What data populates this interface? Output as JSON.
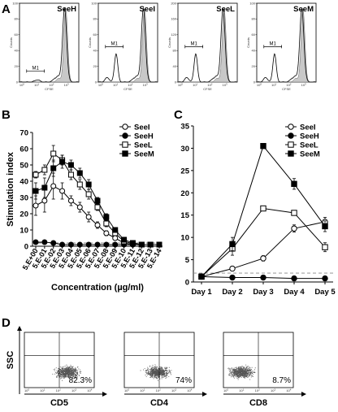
{
  "panels": {
    "A": "A",
    "B": "B",
    "C": "C",
    "D": "D"
  },
  "chart_data": [
    {
      "panel": "A",
      "type": "histogram",
      "subplots": [
        {
          "title": "SeeH",
          "ylabel": "Counts",
          "xlabel": "CFSE",
          "marker": "M1",
          "ymax": 100,
          "ylim": [
            0,
            100
          ],
          "yticks": [
            0,
            20,
            40,
            60,
            80,
            100
          ],
          "xticks": [
            "10^0",
            "10^1",
            "10^2",
            "10^3"
          ],
          "profile": "no-proliferation"
        },
        {
          "title": "SeeI",
          "ylabel": "Counts",
          "xlabel": "CFSE",
          "marker": "M1",
          "ymax": 100,
          "ylim": [
            0,
            100
          ],
          "yticks": [
            0,
            20,
            40,
            60,
            80,
            100
          ],
          "xticks": [
            "10^0",
            "10^1",
            "10^2",
            "10^3"
          ],
          "profile": "proliferation"
        },
        {
          "title": "SeeL",
          "ylabel": "Counts",
          "xlabel": "CFSE",
          "marker": "M1",
          "ymax": 200,
          "ylim": [
            0,
            200
          ],
          "yticks": [
            0,
            40,
            80,
            120,
            160,
            200
          ],
          "xticks": [
            "10^0",
            "10^1",
            "10^2",
            "10^3"
          ],
          "profile": "proliferation"
        },
        {
          "title": "SeeM",
          "ylabel": "Counts",
          "xlabel": "CFSE",
          "marker": "M1",
          "ymax": 100,
          "ylim": [
            0,
            100
          ],
          "yticks": [
            0,
            20,
            40,
            60,
            80,
            100
          ],
          "xticks": [
            "10^0",
            "10^1",
            "10^2",
            "10^3"
          ],
          "profile": "proliferation"
        }
      ]
    },
    {
      "panel": "B",
      "type": "line",
      "xlabel": "Concentration (µg/ml)",
      "ylabel": "Stimulation index",
      "ylim": [
        0,
        70
      ],
      "yticks": [
        0,
        10,
        20,
        30,
        40,
        50,
        60,
        70
      ],
      "categories": [
        "5.E+00",
        "5.E-01",
        "5.E-02",
        "5.E-03",
        "5.E-04",
        "5.E-05",
        "5.E-06",
        "5.E-07",
        "5.E-08",
        "5.E-09",
        "5.E-10",
        "5.E-11",
        "5.E-12",
        "5.E-13",
        "5.E-14"
      ],
      "threshold": 2,
      "legend_position": "top-right",
      "series": [
        {
          "name": "SeeI",
          "marker": "open-circle",
          "values": [
            25,
            28,
            37,
            34,
            28,
            24,
            18,
            13,
            8,
            5,
            2,
            1,
            1,
            1,
            1
          ],
          "errors": [
            6,
            7,
            8,
            5,
            3,
            3,
            3,
            2,
            1.5,
            1,
            0.5,
            0.3,
            0.3,
            0.3,
            0.3
          ]
        },
        {
          "name": "SeeH",
          "marker": "filled-circle",
          "values": [
            2.5,
            2.5,
            2,
            1,
            1,
            1,
            1,
            1,
            1,
            1,
            1,
            1,
            1,
            1,
            1
          ],
          "errors": [
            0.3,
            0.3,
            0.3,
            0.2,
            0.2,
            0.2,
            0.2,
            0.2,
            0.2,
            0.2,
            0.2,
            0.2,
            0.2,
            0.2,
            0.2
          ]
        },
        {
          "name": "SeeL",
          "marker": "open-square",
          "values": [
            44,
            47,
            57,
            53,
            44,
            38,
            32,
            24,
            14,
            8,
            3,
            1.5,
            1,
            1,
            1
          ],
          "errors": [
            2,
            3,
            5,
            3,
            3,
            3,
            3,
            2,
            2,
            1,
            0.5,
            0.3,
            0.3,
            0.3,
            0.3
          ]
        },
        {
          "name": "SeeM",
          "marker": "filled-square",
          "values": [
            34,
            36,
            48,
            52,
            50,
            45,
            38,
            28,
            18,
            10,
            4,
            2,
            1,
            1,
            1
          ],
          "errors": [
            5,
            6,
            5,
            4,
            3,
            3,
            3,
            2,
            2,
            1,
            0.5,
            0.3,
            0.3,
            0.3,
            0.3
          ]
        }
      ]
    },
    {
      "panel": "C",
      "type": "line",
      "xlabel": "",
      "ylabel": "",
      "ylim": [
        0,
        35
      ],
      "yticks": [
        0,
        5,
        10,
        15,
        20,
        25,
        30,
        35
      ],
      "categories": [
        "Day 1",
        "Day 2",
        "Day 3",
        "Day 4",
        "Day 5"
      ],
      "threshold": 2,
      "legend_position": "top-right",
      "series": [
        {
          "name": "SeeI",
          "marker": "open-circle",
          "values": [
            1.2,
            3,
            5.3,
            12,
            13.5
          ],
          "errors": [
            0.2,
            0.5,
            0.6,
            0.8,
            1.0
          ]
        },
        {
          "name": "SeeH",
          "marker": "filled-circle",
          "values": [
            1.2,
            1.0,
            1.0,
            0.8,
            0.8
          ],
          "errors": [
            0.1,
            0.1,
            0.1,
            0.1,
            0.1
          ]
        },
        {
          "name": "SeeL",
          "marker": "open-square",
          "values": [
            1.2,
            7.5,
            16.5,
            15.5,
            7.8
          ],
          "errors": [
            0.2,
            1.5,
            0.5,
            0.3,
            1.0
          ]
        },
        {
          "name": "SeeM",
          "marker": "filled-square",
          "values": [
            1.2,
            8.5,
            30.5,
            22,
            12.5
          ],
          "errors": [
            0.2,
            1.5,
            0.5,
            1.2,
            1.2
          ]
        }
      ]
    },
    {
      "panel": "D",
      "type": "scatter",
      "ylabel": "SSC",
      "subplots": [
        {
          "xlabel": "CD5",
          "percent": "82.3%",
          "xticks": [
            "10^0",
            "10^1",
            "10^2",
            "10^3",
            "10^4"
          ]
        },
        {
          "xlabel": "CD4",
          "percent": "74%",
          "xticks": [
            "10^0",
            "10^1",
            "10^2",
            "10^3",
            "10^4"
          ]
        },
        {
          "xlabel": "CD8",
          "percent": "8.7%",
          "xticks": [
            "10^0",
            "10^1",
            "10^2",
            "10^3",
            "10^4"
          ]
        }
      ]
    }
  ],
  "colors": {
    "fill": "#c8c8c8",
    "line": "#000000",
    "dot": "#555555",
    "threshold": "#888888"
  }
}
